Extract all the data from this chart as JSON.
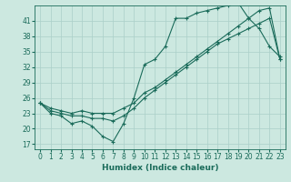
{
  "xlabel": "Humidex (Indice chaleur)",
  "bg_color": "#cce8e0",
  "line_color": "#1a6b5a",
  "grid_color": "#aacfc8",
  "xlim": [
    -0.5,
    23.5
  ],
  "ylim": [
    16,
    44
  ],
  "yticks": [
    17,
    20,
    23,
    26,
    29,
    32,
    35,
    38,
    41
  ],
  "xticks": [
    0,
    1,
    2,
    3,
    4,
    5,
    6,
    7,
    8,
    9,
    10,
    11,
    12,
    13,
    14,
    15,
    16,
    17,
    18,
    19,
    20,
    21,
    22,
    23
  ],
  "s1_x": [
    0,
    1,
    2,
    3,
    4,
    5,
    6,
    7,
    8,
    9,
    10,
    11,
    12,
    13,
    14,
    15,
    16,
    17,
    18,
    19,
    20,
    21,
    22,
    23
  ],
  "s1_y": [
    25.0,
    23.0,
    22.5,
    21.0,
    21.5,
    20.5,
    18.5,
    17.5,
    21.0,
    26.0,
    32.5,
    33.5,
    36.0,
    41.5,
    41.5,
    42.5,
    43.0,
    43.5,
    44.0,
    44.5,
    41.5,
    39.5,
    36.0,
    34.0
  ],
  "s2_x": [
    0,
    1,
    2,
    3,
    4,
    5,
    6,
    7,
    8,
    9,
    10,
    11,
    12,
    13,
    14,
    15,
    16,
    17,
    18,
    19,
    20,
    21,
    22,
    23
  ],
  "s2_y": [
    25.0,
    23.5,
    23.0,
    22.5,
    22.5,
    22.0,
    22.0,
    21.5,
    22.5,
    24.0,
    26.0,
    27.5,
    29.0,
    30.5,
    32.0,
    33.5,
    35.0,
    36.5,
    37.5,
    38.5,
    39.5,
    40.5,
    41.5,
    33.5
  ],
  "s3_x": [
    0,
    1,
    2,
    3,
    4,
    5,
    6,
    7,
    8,
    9,
    10,
    11,
    12,
    13,
    14,
    15,
    16,
    17,
    18,
    19,
    20,
    21,
    22,
    23
  ],
  "s3_y": [
    25.0,
    24.0,
    23.5,
    23.0,
    23.5,
    23.0,
    23.0,
    23.0,
    24.0,
    25.0,
    27.0,
    28.0,
    29.5,
    31.0,
    32.5,
    34.0,
    35.5,
    37.0,
    38.5,
    40.0,
    41.5,
    43.0,
    43.5,
    33.5
  ]
}
